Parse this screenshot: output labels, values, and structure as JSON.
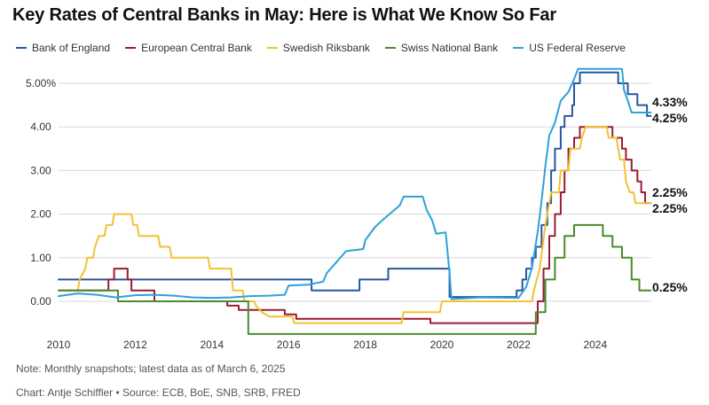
{
  "title": "Key Rates of Central Banks in May: Here is What We Know So Far",
  "note": "Note: Monthly snapshots; latest data as of March 6, 2025",
  "credit": "Chart: Antje Schiffler • Source: ECB, BoE, SNB, SRB, FRED",
  "chart_data": {
    "type": "line",
    "xlim": [
      2010,
      2025.5
    ],
    "ylim": [
      -0.75,
      5.5
    ],
    "x_ticks": [
      {
        "value": 2010,
        "label": "2010"
      },
      {
        "value": 2012,
        "label": "2012"
      },
      {
        "value": 2014,
        "label": "2014"
      },
      {
        "value": 2016,
        "label": "2016"
      },
      {
        "value": 2018,
        "label": "2018"
      },
      {
        "value": 2020,
        "label": "2020"
      },
      {
        "value": 2022,
        "label": "2022"
      },
      {
        "value": 2024,
        "label": "2024"
      }
    ],
    "y_ticks": [
      {
        "value": 0,
        "label": "0.00"
      },
      {
        "value": 1,
        "label": "1.00"
      },
      {
        "value": 2,
        "label": "2.00"
      },
      {
        "value": 3,
        "label": "3.00"
      },
      {
        "value": 4,
        "label": "4.00"
      },
      {
        "value": 5,
        "label": "5.00%"
      }
    ],
    "grid": "horizontal",
    "legend_position": "top",
    "series": [
      {
        "name": "Bank of England",
        "color": "#2a55a3",
        "end_label": "4.25%",
        "points": [
          [
            2010,
            0.5
          ],
          [
            2016.6,
            0.5
          ],
          [
            2016.6,
            0.25
          ],
          [
            2017.85,
            0.25
          ],
          [
            2017.85,
            0.5
          ],
          [
            2018.6,
            0.5
          ],
          [
            2018.6,
            0.75
          ],
          [
            2020.2,
            0.75
          ],
          [
            2020.2,
            0.1
          ],
          [
            2021.95,
            0.1
          ],
          [
            2021.95,
            0.25
          ],
          [
            2022.1,
            0.25
          ],
          [
            2022.1,
            0.5
          ],
          [
            2022.2,
            0.5
          ],
          [
            2022.2,
            0.75
          ],
          [
            2022.35,
            0.75
          ],
          [
            2022.35,
            1.0
          ],
          [
            2022.45,
            1.0
          ],
          [
            2022.45,
            1.25
          ],
          [
            2022.6,
            1.25
          ],
          [
            2022.6,
            1.75
          ],
          [
            2022.75,
            1.75
          ],
          [
            2022.75,
            2.25
          ],
          [
            2022.85,
            2.25
          ],
          [
            2022.85,
            3.0
          ],
          [
            2022.95,
            3.0
          ],
          [
            2022.95,
            3.5
          ],
          [
            2023.1,
            3.5
          ],
          [
            2023.1,
            4.0
          ],
          [
            2023.2,
            4.0
          ],
          [
            2023.2,
            4.25
          ],
          [
            2023.4,
            4.25
          ],
          [
            2023.4,
            4.5
          ],
          [
            2023.45,
            4.5
          ],
          [
            2023.45,
            5.0
          ],
          [
            2023.6,
            5.0
          ],
          [
            2023.6,
            5.25
          ],
          [
            2024.6,
            5.25
          ],
          [
            2024.6,
            5.0
          ],
          [
            2024.85,
            5.0
          ],
          [
            2024.85,
            4.75
          ],
          [
            2025.1,
            4.75
          ],
          [
            2025.1,
            4.5
          ],
          [
            2025.35,
            4.5
          ],
          [
            2025.35,
            4.25
          ],
          [
            2025.45,
            4.25
          ]
        ]
      },
      {
        "name": "European Central Bank",
        "color": "#9b1c35",
        "end_label": "2.25%",
        "points": [
          [
            2010,
            0.25
          ],
          [
            2011.3,
            0.25
          ],
          [
            2011.3,
            0.5
          ],
          [
            2011.45,
            0.5
          ],
          [
            2011.45,
            0.75
          ],
          [
            2011.8,
            0.75
          ],
          [
            2011.8,
            0.5
          ],
          [
            2011.9,
            0.5
          ],
          [
            2011.9,
            0.25
          ],
          [
            2012.5,
            0.25
          ],
          [
            2012.5,
            0
          ],
          [
            2014.4,
            0
          ],
          [
            2014.4,
            -0.1
          ],
          [
            2014.7,
            -0.1
          ],
          [
            2014.7,
            -0.2
          ],
          [
            2015.9,
            -0.2
          ],
          [
            2015.9,
            -0.3
          ],
          [
            2016.2,
            -0.3
          ],
          [
            2016.2,
            -0.4
          ],
          [
            2019.7,
            -0.4
          ],
          [
            2019.7,
            -0.5
          ],
          [
            2022.5,
            -0.5
          ],
          [
            2022.5,
            0
          ],
          [
            2022.65,
            0
          ],
          [
            2022.65,
            0.75
          ],
          [
            2022.8,
            0.75
          ],
          [
            2022.8,
            1.5
          ],
          [
            2022.95,
            1.5
          ],
          [
            2022.95,
            2.0
          ],
          [
            2023.1,
            2.0
          ],
          [
            2023.1,
            2.5
          ],
          [
            2023.2,
            2.5
          ],
          [
            2023.2,
            3.0
          ],
          [
            2023.3,
            3.0
          ],
          [
            2023.3,
            3.5
          ],
          [
            2023.45,
            3.5
          ],
          [
            2023.45,
            3.75
          ],
          [
            2023.6,
            3.75
          ],
          [
            2023.6,
            4.0
          ],
          [
            2024.45,
            4.0
          ],
          [
            2024.45,
            3.75
          ],
          [
            2024.7,
            3.75
          ],
          [
            2024.7,
            3.5
          ],
          [
            2024.8,
            3.5
          ],
          [
            2024.8,
            3.25
          ],
          [
            2024.95,
            3.25
          ],
          [
            2024.95,
            3.0
          ],
          [
            2025.1,
            3.0
          ],
          [
            2025.1,
            2.75
          ],
          [
            2025.2,
            2.75
          ],
          [
            2025.2,
            2.5
          ],
          [
            2025.3,
            2.5
          ],
          [
            2025.3,
            2.25
          ],
          [
            2025.45,
            2.25
          ]
        ]
      },
      {
        "name": "Swedish Riksbank",
        "color": "#f2c230",
        "end_label": "2.25%",
        "points": [
          [
            2010,
            0.25
          ],
          [
            2010.5,
            0.25
          ],
          [
            2010.55,
            0.5
          ],
          [
            2010.7,
            0.75
          ],
          [
            2010.75,
            1.0
          ],
          [
            2010.9,
            1.0
          ],
          [
            2010.95,
            1.25
          ],
          [
            2011.05,
            1.5
          ],
          [
            2011.2,
            1.5
          ],
          [
            2011.25,
            1.75
          ],
          [
            2011.4,
            1.75
          ],
          [
            2011.45,
            2.0
          ],
          [
            2011.9,
            2.0
          ],
          [
            2011.95,
            1.75
          ],
          [
            2012.05,
            1.75
          ],
          [
            2012.1,
            1.5
          ],
          [
            2012.6,
            1.5
          ],
          [
            2012.65,
            1.25
          ],
          [
            2012.9,
            1.25
          ],
          [
            2012.95,
            1.0
          ],
          [
            2013.9,
            1.0
          ],
          [
            2013.95,
            0.75
          ],
          [
            2014.5,
            0.75
          ],
          [
            2014.55,
            0.25
          ],
          [
            2014.8,
            0.25
          ],
          [
            2014.85,
            0
          ],
          [
            2015.1,
            0
          ],
          [
            2015.15,
            -0.1
          ],
          [
            2015.3,
            -0.25
          ],
          [
            2015.5,
            -0.35
          ],
          [
            2016.1,
            -0.35
          ],
          [
            2016.15,
            -0.5
          ],
          [
            2018.95,
            -0.5
          ],
          [
            2019.0,
            -0.25
          ],
          [
            2019.95,
            -0.25
          ],
          [
            2020.0,
            0
          ],
          [
            2022.35,
            0
          ],
          [
            2022.4,
            0.25
          ],
          [
            2022.55,
            0.75
          ],
          [
            2022.7,
            1.75
          ],
          [
            2022.85,
            2.5
          ],
          [
            2023.05,
            2.5
          ],
          [
            2023.1,
            3.0
          ],
          [
            2023.3,
            3.0
          ],
          [
            2023.35,
            3.5
          ],
          [
            2023.6,
            3.5
          ],
          [
            2023.65,
            3.75
          ],
          [
            2023.75,
            4.0
          ],
          [
            2024.3,
            4.0
          ],
          [
            2024.35,
            3.75
          ],
          [
            2024.55,
            3.75
          ],
          [
            2024.6,
            3.5
          ],
          [
            2024.65,
            3.25
          ],
          [
            2024.75,
            3.25
          ],
          [
            2024.8,
            2.75
          ],
          [
            2024.9,
            2.5
          ],
          [
            2025.0,
            2.5
          ],
          [
            2025.05,
            2.25
          ],
          [
            2025.45,
            2.25
          ]
        ]
      },
      {
        "name": "Swiss National Bank",
        "color": "#4c8a2f",
        "end_label": "0.25%",
        "points": [
          [
            2010,
            0.25
          ],
          [
            2011.55,
            0.25
          ],
          [
            2011.55,
            0.0
          ],
          [
            2014.95,
            0.0
          ],
          [
            2014.95,
            -0.75
          ],
          [
            2022.45,
            -0.75
          ],
          [
            2022.45,
            -0.25
          ],
          [
            2022.7,
            -0.25
          ],
          [
            2022.7,
            0.5
          ],
          [
            2022.95,
            0.5
          ],
          [
            2022.95,
            1.0
          ],
          [
            2023.2,
            1.0
          ],
          [
            2023.2,
            1.5
          ],
          [
            2023.45,
            1.5
          ],
          [
            2023.45,
            1.75
          ],
          [
            2024.2,
            1.75
          ],
          [
            2024.2,
            1.5
          ],
          [
            2024.45,
            1.5
          ],
          [
            2024.45,
            1.25
          ],
          [
            2024.7,
            1.25
          ],
          [
            2024.7,
            1.0
          ],
          [
            2024.95,
            1.0
          ],
          [
            2024.95,
            0.5
          ],
          [
            2025.15,
            0.5
          ],
          [
            2025.15,
            0.25
          ],
          [
            2025.45,
            0.25
          ]
        ]
      },
      {
        "name": "US Federal Reserve",
        "color": "#2da2d6",
        "end_label": "4.33%",
        "points": [
          [
            2010,
            0.12
          ],
          [
            2010.5,
            0.18
          ],
          [
            2011,
            0.15
          ],
          [
            2011.5,
            0.09
          ],
          [
            2012,
            0.14
          ],
          [
            2012.5,
            0.15
          ],
          [
            2013,
            0.13
          ],
          [
            2013.5,
            0.09
          ],
          [
            2014,
            0.08
          ],
          [
            2014.5,
            0.09
          ],
          [
            2015,
            0.12
          ],
          [
            2015.5,
            0.13
          ],
          [
            2015.9,
            0.15
          ],
          [
            2016.0,
            0.36
          ],
          [
            2016.5,
            0.38
          ],
          [
            2016.9,
            0.45
          ],
          [
            2017.0,
            0.65
          ],
          [
            2017.25,
            0.9
          ],
          [
            2017.5,
            1.15
          ],
          [
            2017.95,
            1.2
          ],
          [
            2018.0,
            1.4
          ],
          [
            2018.25,
            1.7
          ],
          [
            2018.5,
            1.9
          ],
          [
            2018.9,
            2.2
          ],
          [
            2019.0,
            2.4
          ],
          [
            2019.5,
            2.4
          ],
          [
            2019.6,
            2.1
          ],
          [
            2019.75,
            1.85
          ],
          [
            2019.85,
            1.55
          ],
          [
            2020.1,
            1.58
          ],
          [
            2020.2,
            0.65
          ],
          [
            2020.25,
            0.05
          ],
          [
            2021.0,
            0.09
          ],
          [
            2022.0,
            0.08
          ],
          [
            2022.2,
            0.33
          ],
          [
            2022.35,
            0.77
          ],
          [
            2022.5,
            1.6
          ],
          [
            2022.6,
            2.3
          ],
          [
            2022.7,
            3.1
          ],
          [
            2022.8,
            3.8
          ],
          [
            2022.95,
            4.1
          ],
          [
            2023.1,
            4.6
          ],
          [
            2023.3,
            4.8
          ],
          [
            2023.45,
            5.1
          ],
          [
            2023.55,
            5.33
          ],
          [
            2024.7,
            5.33
          ],
          [
            2024.75,
            4.85
          ],
          [
            2024.85,
            4.6
          ],
          [
            2024.95,
            4.33
          ],
          [
            2025.45,
            4.33
          ]
        ]
      }
    ]
  }
}
